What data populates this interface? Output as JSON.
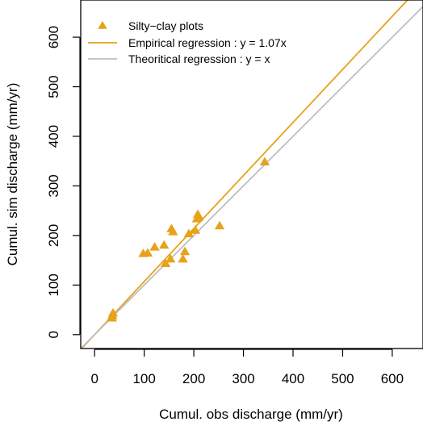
{
  "chart_data": {
    "type": "scatter",
    "xlabel": "Cumul. obs discharge (mm/yr)",
    "ylabel": "Cumul. sim discharge (mm/yr)",
    "xlim": [
      -28,
      662
    ],
    "ylim": [
      -28,
      675
    ],
    "xticks": [
      0,
      100,
      200,
      300,
      400,
      500,
      600
    ],
    "yticks": [
      0,
      100,
      200,
      300,
      400,
      500,
      600
    ],
    "grid": false,
    "legend_position": "top-left",
    "series": [
      {
        "name": "Silty−clay plots",
        "kind": "points",
        "marker": "triangle",
        "color": "#E6A21A",
        "points": [
          [
            35,
            33
          ],
          [
            36,
            38
          ],
          [
            37,
            43
          ],
          [
            98,
            163
          ],
          [
            107,
            164
          ],
          [
            121,
            176
          ],
          [
            140,
            180
          ],
          [
            143,
            143
          ],
          [
            153,
            152
          ],
          [
            155,
            213
          ],
          [
            158,
            207
          ],
          [
            178,
            152
          ],
          [
            182,
            167
          ],
          [
            190,
            203
          ],
          [
            203,
            210
          ],
          [
            206,
            233
          ],
          [
            208,
            242
          ],
          [
            210,
            236
          ],
          [
            252,
            219
          ],
          [
            343,
            348
          ]
        ]
      },
      {
        "name": "Empirical regression : y = 1.07x",
        "kind": "line",
        "slope": 1.07,
        "color": "#E6A21A"
      },
      {
        "name": "Theoritical regression : y = x",
        "kind": "line",
        "slope": 1.0,
        "color": "#BEBEBE"
      }
    ]
  }
}
